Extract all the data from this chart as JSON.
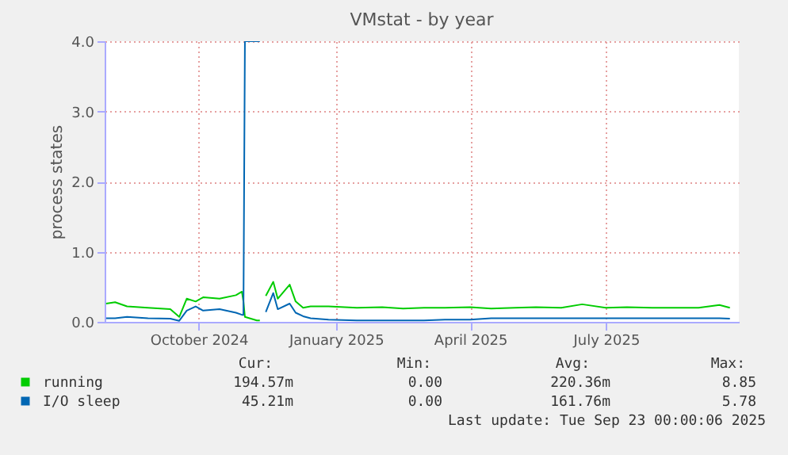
{
  "chart_data": {
    "type": "line",
    "title": "VMstat - by year",
    "ylabel": "process states",
    "x": [
      "2024-07-31",
      "2024-08-06",
      "2024-08-14",
      "2024-08-28",
      "2024-09-12",
      "2024-09-18",
      "2024-09-23",
      "2024-09-29",
      "2024-10-04",
      "2024-10-15",
      "2024-10-26",
      "2024-10-30",
      "2024-10-31",
      "2024-11-01",
      "2024-11-09",
      "2024-11-11",
      "2024-11-13",
      "2024-11-15",
      "2024-11-20",
      "2024-11-23",
      "2024-12-01",
      "2024-12-05",
      "2024-12-10",
      "2024-12-15",
      "2024-12-27",
      "2025-01-15",
      "2025-02-01",
      "2025-02-15",
      "2025-03-01",
      "2025-03-15",
      "2025-04-01",
      "2025-04-15",
      "2025-05-01",
      "2025-05-15",
      "2025-06-01",
      "2025-06-15",
      "2025-07-01",
      "2025-07-15",
      "2025-08-01",
      "2025-08-15",
      "2025-09-01",
      "2025-09-15",
      "2025-09-22"
    ],
    "series": [
      {
        "name": "running",
        "color": "#00cc00",
        "values": [
          0.26,
          0.28,
          0.22,
          0.2,
          0.18,
          0.07,
          0.33,
          0.29,
          0.35,
          0.33,
          0.38,
          0.43,
          0.29,
          0.07,
          0.02,
          0.02,
          null,
          0.37,
          0.57,
          0.33,
          0.53,
          0.29,
          0.2,
          0.22,
          0.22,
          0.2,
          0.21,
          0.19,
          0.2,
          0.2,
          0.21,
          0.19,
          0.2,
          0.21,
          0.2,
          0.25,
          0.2,
          0.21,
          0.2,
          0.2,
          0.2,
          0.24,
          0.2
        ]
      },
      {
        "name": "I/O sleep",
        "color": "#0066b3",
        "values": [
          0.05,
          0.05,
          0.07,
          0.05,
          0.045,
          0.015,
          0.16,
          0.22,
          0.16,
          0.18,
          0.13,
          0.1,
          0.1,
          4.0,
          4.0,
          4.0,
          null,
          0.14,
          0.41,
          0.18,
          0.26,
          0.13,
          0.08,
          0.05,
          0.03,
          0.02,
          0.02,
          0.02,
          0.02,
          0.03,
          0.03,
          0.05,
          0.05,
          0.05,
          0.05,
          0.05,
          0.05,
          0.05,
          0.05,
          0.05,
          0.05,
          0.05,
          0.045
        ]
      }
    ],
    "xlim": [
      "2024-07-30",
      "2025-09-28"
    ],
    "xticks": [
      {
        "value": "2024-10-01",
        "label": "October 2024"
      },
      {
        "value": "2025-01-01",
        "label": "January 2025"
      },
      {
        "value": "2025-04-01",
        "label": "April 2025"
      },
      {
        "value": "2025-07-01",
        "label": "July 2025"
      }
    ],
    "ylim": [
      0,
      4
    ],
    "yticks": [
      {
        "value": 0,
        "label": "0.0"
      },
      {
        "value": 1,
        "label": "1.0"
      },
      {
        "value": 2,
        "label": "2.0"
      },
      {
        "value": 3,
        "label": "3.0"
      },
      {
        "value": 4,
        "label": "4.0"
      }
    ],
    "grid": true,
    "legend": "bottom",
    "annotations": [
      "Cur:",
      "Min:",
      "Avg:",
      "Max:",
      "194.57m",
      "0.00",
      "220.36m",
      "8.85",
      "45.21m",
      "0.00",
      "161.76m",
      "5.78",
      "Last update: Tue Sep 23 00:00:06 2025"
    ]
  }
}
